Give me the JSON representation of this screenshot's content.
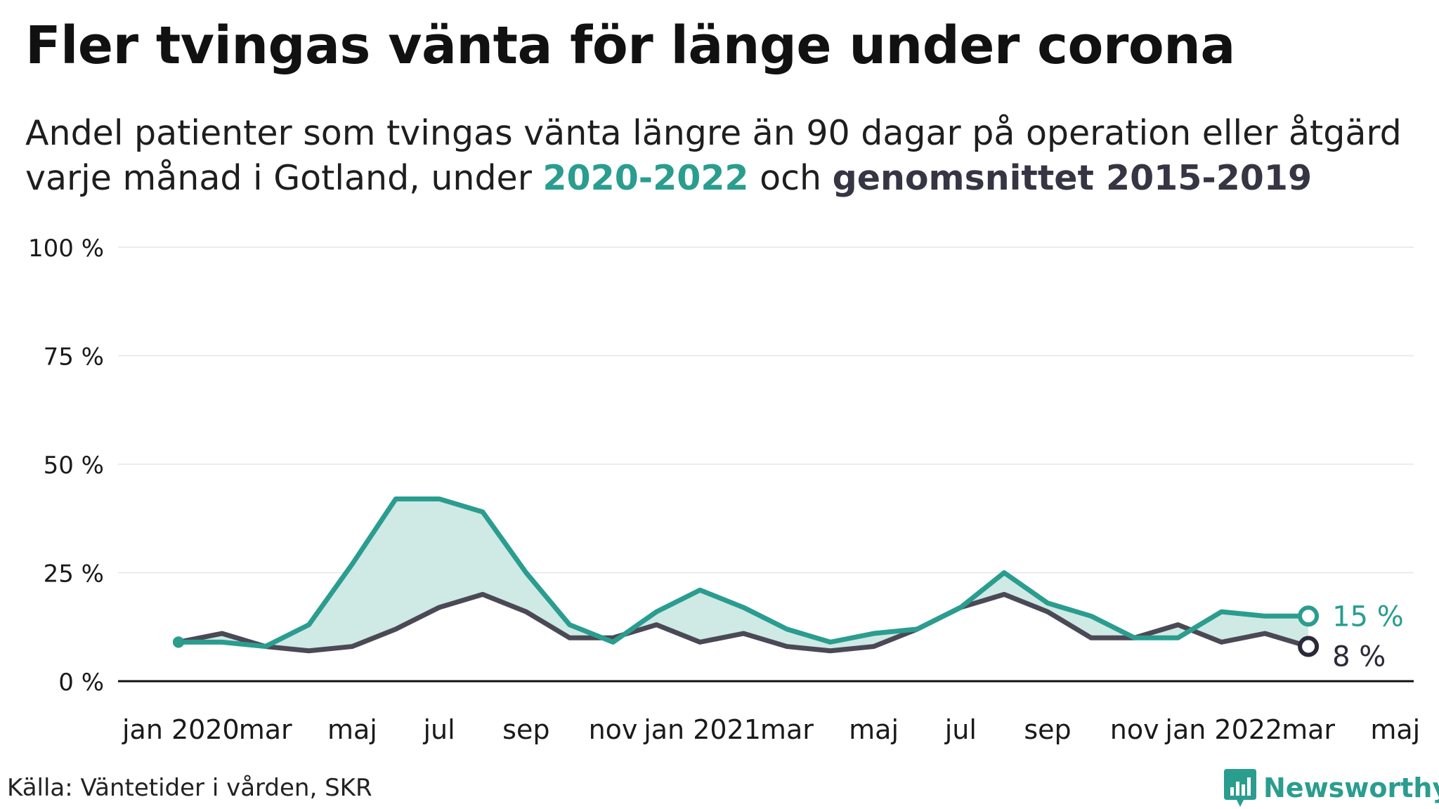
{
  "title": "Fler tvingas vänta för länge under corona",
  "subtitle": {
    "line1": "Andel patienter som tvingas vänta längre än 90 dagar på operation eller åtgärd",
    "line2_prefix": "varje månad i Gotland, under ",
    "highlight1": "2020-2022",
    "middle": " och ",
    "highlight2": "genomsnittet 2015-2019"
  },
  "source": "Källa: Väntetider i vården, SKR",
  "logo": {
    "name": "Newsworthy",
    "icon": "bar-chart-icon"
  },
  "colors": {
    "current": "#2a9d8f",
    "average": "#4a4955",
    "fill": "#cfe9e5",
    "grid": "#e6e6e6"
  },
  "chart_data": {
    "type": "line",
    "x": [
      "2020-01",
      "2020-02",
      "2020-03",
      "2020-04",
      "2020-05",
      "2020-06",
      "2020-07",
      "2020-08",
      "2020-09",
      "2020-10",
      "2020-11",
      "2020-12",
      "2021-01",
      "2021-02",
      "2021-03",
      "2021-04",
      "2021-05",
      "2021-06",
      "2021-07",
      "2021-08",
      "2021-09",
      "2021-10",
      "2021-11",
      "2021-12",
      "2022-01",
      "2022-02",
      "2022-03"
    ],
    "x_tick_labels": [
      "jan 2020",
      "mar",
      "maj",
      "jul",
      "sep",
      "nov",
      "jan 2021",
      "mar",
      "maj",
      "jul",
      "sep",
      "nov",
      "jan 2022",
      "mar",
      "maj"
    ],
    "x_range": [
      "2020-01",
      "2022-05"
    ],
    "ylim": [
      0,
      100
    ],
    "y_ticks": [
      "0 %",
      "25 %",
      "50 %",
      "75 %",
      "100 %"
    ],
    "grid": true,
    "series": [
      {
        "name": "2020-2022",
        "values": [
          9,
          9,
          8,
          13,
          27,
          42,
          42,
          39,
          25,
          13,
          9,
          16,
          21,
          17,
          12,
          9,
          11,
          12,
          17,
          25,
          18,
          15,
          10,
          10,
          16,
          15,
          15
        ],
        "end_label": "15 %"
      },
      {
        "name": "genomsnittet 2015-2019",
        "values": [
          9,
          11,
          8,
          7,
          8,
          12,
          17,
          20,
          16,
          10,
          10,
          13,
          9,
          11,
          8,
          7,
          8,
          12,
          17,
          20,
          16,
          10,
          10,
          13,
          9,
          11,
          8
        ],
        "end_label": "8 %"
      }
    ]
  }
}
